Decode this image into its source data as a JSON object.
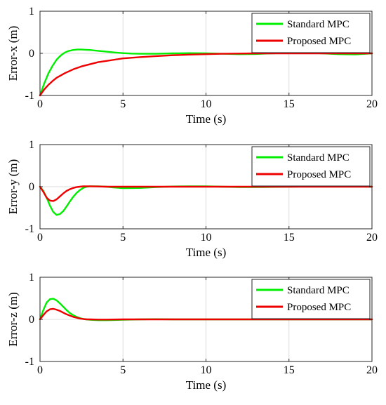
{
  "chart_data": [
    {
      "type": "line",
      "xlabel": "Time (s)",
      "ylabel": "Error-x (m)",
      "xlim": [
        0,
        20
      ],
      "ylim": [
        -1,
        1
      ],
      "xticks": [
        "0",
        "5",
        "10",
        "15",
        "20"
      ],
      "yticks": [
        "-1",
        "0",
        "1"
      ],
      "grid": true,
      "legend_position": "top-right",
      "series": [
        {
          "name": "Standard MPC",
          "color": "#00ee00",
          "x": [
            0,
            0.25,
            0.5,
            0.75,
            1.0,
            1.25,
            1.5,
            1.75,
            2.0,
            2.25,
            2.5,
            2.75,
            3.0,
            3.5,
            4.0,
            4.5,
            5.0,
            5.5,
            6.0,
            7.0,
            8.0,
            9.0,
            10.0,
            11.0,
            12.0,
            13.0,
            14.0,
            15.0,
            16.0,
            17.0,
            18.0,
            19.0,
            20.0
          ],
          "y": [
            -1.0,
            -0.72,
            -0.48,
            -0.3,
            -0.15,
            -0.05,
            0.02,
            0.06,
            0.08,
            0.09,
            0.09,
            0.085,
            0.08,
            0.06,
            0.04,
            0.02,
            0.005,
            -0.005,
            -0.01,
            -0.01,
            0.0,
            0.005,
            0.0,
            -0.01,
            -0.02,
            -0.015,
            0.0,
            0.015,
            0.02,
            0.0,
            -0.02,
            -0.025,
            0.0
          ]
        },
        {
          "name": "Proposed MPC",
          "color": "#ee0000",
          "x": [
            0,
            0.25,
            0.5,
            0.75,
            1.0,
            1.5,
            2.0,
            2.5,
            3.0,
            3.5,
            4.0,
            4.5,
            5.0,
            6.0,
            7.0,
            8.0,
            9.0,
            10.0,
            11.0,
            12.0,
            13.0,
            14.0,
            15.0,
            16.0,
            17.0,
            18.0,
            19.0,
            20.0
          ],
          "y": [
            -1.0,
            -0.86,
            -0.75,
            -0.66,
            -0.58,
            -0.47,
            -0.38,
            -0.31,
            -0.26,
            -0.21,
            -0.18,
            -0.15,
            -0.12,
            -0.09,
            -0.065,
            -0.045,
            -0.03,
            -0.02,
            -0.01,
            -0.005,
            0.0,
            0.0,
            0.0,
            0.0,
            0.0,
            0.0,
            0.0,
            0.0
          ]
        }
      ]
    },
    {
      "type": "line",
      "xlabel": "Time (s)",
      "ylabel": "Error-y (m)",
      "xlim": [
        0,
        20
      ],
      "ylim": [
        -1,
        1
      ],
      "xticks": [
        "0",
        "5",
        "10",
        "15",
        "20"
      ],
      "yticks": [
        "-1",
        "0",
        "1"
      ],
      "grid": true,
      "legend_position": "top-right",
      "series": [
        {
          "name": "Standard MPC",
          "color": "#00ee00",
          "x": [
            0,
            0.2,
            0.4,
            0.6,
            0.8,
            1.0,
            1.2,
            1.4,
            1.6,
            1.8,
            2.0,
            2.2,
            2.4,
            2.6,
            2.8,
            3.0,
            3.5,
            4.0,
            4.5,
            5.0,
            6.0,
            7.0,
            8.0,
            9.0,
            10.0,
            11.0,
            12.0,
            13.0,
            14.0,
            15.0,
            16.0,
            17.0,
            18.0,
            19.0,
            20.0
          ],
          "y": [
            0.0,
            -0.1,
            -0.26,
            -0.45,
            -0.6,
            -0.67,
            -0.65,
            -0.58,
            -0.47,
            -0.35,
            -0.24,
            -0.15,
            -0.08,
            -0.03,
            0.0,
            0.01,
            0.01,
            0.0,
            -0.02,
            -0.035,
            -0.03,
            -0.01,
            0.005,
            0.01,
            0.01,
            0.0,
            -0.01,
            -0.01,
            -0.005,
            0.0,
            0.005,
            0.01,
            0.01,
            0.005,
            0.0
          ]
        },
        {
          "name": "Proposed MPC",
          "color": "#ee0000",
          "x": [
            0,
            0.2,
            0.4,
            0.6,
            0.8,
            1.0,
            1.2,
            1.4,
            1.6,
            1.8,
            2.0,
            2.2,
            2.4,
            2.6,
            2.8,
            3.0,
            3.5,
            4.0,
            5.0,
            6.0,
            7.0,
            8.0,
            9.0,
            10.0,
            12.0,
            14.0,
            16.0,
            18.0,
            20.0
          ],
          "y": [
            0.0,
            -0.12,
            -0.26,
            -0.33,
            -0.34,
            -0.3,
            -0.23,
            -0.16,
            -0.1,
            -0.06,
            -0.03,
            -0.01,
            0.0,
            0.01,
            0.01,
            0.01,
            0.005,
            0.0,
            0.0,
            0.0,
            0.0,
            0.0,
            0.0,
            0.0,
            0.0,
            0.0,
            0.0,
            0.0,
            0.0
          ]
        }
      ]
    },
    {
      "type": "line",
      "xlabel": "Time (s)",
      "ylabel": "Error-z (m)",
      "xlim": [
        0,
        20
      ],
      "ylim": [
        -1,
        1
      ],
      "xticks": [
        "0",
        "5",
        "10",
        "15",
        "20"
      ],
      "yticks": [
        "-1",
        "0",
        "1"
      ],
      "grid": true,
      "legend_position": "top-right",
      "series": [
        {
          "name": "Standard MPC",
          "color": "#00ee00",
          "x": [
            0,
            0.2,
            0.4,
            0.6,
            0.8,
            1.0,
            1.2,
            1.4,
            1.6,
            1.8,
            2.0,
            2.2,
            2.4,
            2.6,
            2.8,
            3.0,
            3.5,
            4.0,
            4.5,
            5.0,
            6.0,
            7.0,
            8.0,
            10.0,
            12.0,
            14.0,
            16.0,
            18.0,
            20.0
          ],
          "y": [
            0.0,
            0.22,
            0.4,
            0.48,
            0.49,
            0.45,
            0.38,
            0.3,
            0.22,
            0.15,
            0.1,
            0.06,
            0.03,
            0.01,
            0.0,
            -0.01,
            -0.02,
            -0.02,
            -0.015,
            -0.01,
            0.0,
            0.005,
            0.0,
            0.0,
            0.0,
            0.0,
            0.0,
            0.0,
            0.0
          ]
        },
        {
          "name": "Proposed MPC",
          "color": "#ee0000",
          "x": [
            0,
            0.2,
            0.4,
            0.6,
            0.8,
            1.0,
            1.2,
            1.4,
            1.6,
            1.8,
            2.0,
            2.2,
            2.4,
            2.6,
            2.8,
            3.0,
            3.5,
            4.0,
            5.0,
            6.0,
            8.0,
            10.0,
            12.0,
            14.0,
            16.0,
            18.0,
            20.0
          ],
          "y": [
            0.0,
            0.1,
            0.19,
            0.24,
            0.25,
            0.23,
            0.2,
            0.16,
            0.12,
            0.09,
            0.06,
            0.04,
            0.02,
            0.01,
            0.0,
            0.0,
            -0.005,
            -0.005,
            0.0,
            0.0,
            0.0,
            0.0,
            0.0,
            0.0,
            0.0,
            0.0,
            0.0
          ]
        }
      ]
    }
  ]
}
